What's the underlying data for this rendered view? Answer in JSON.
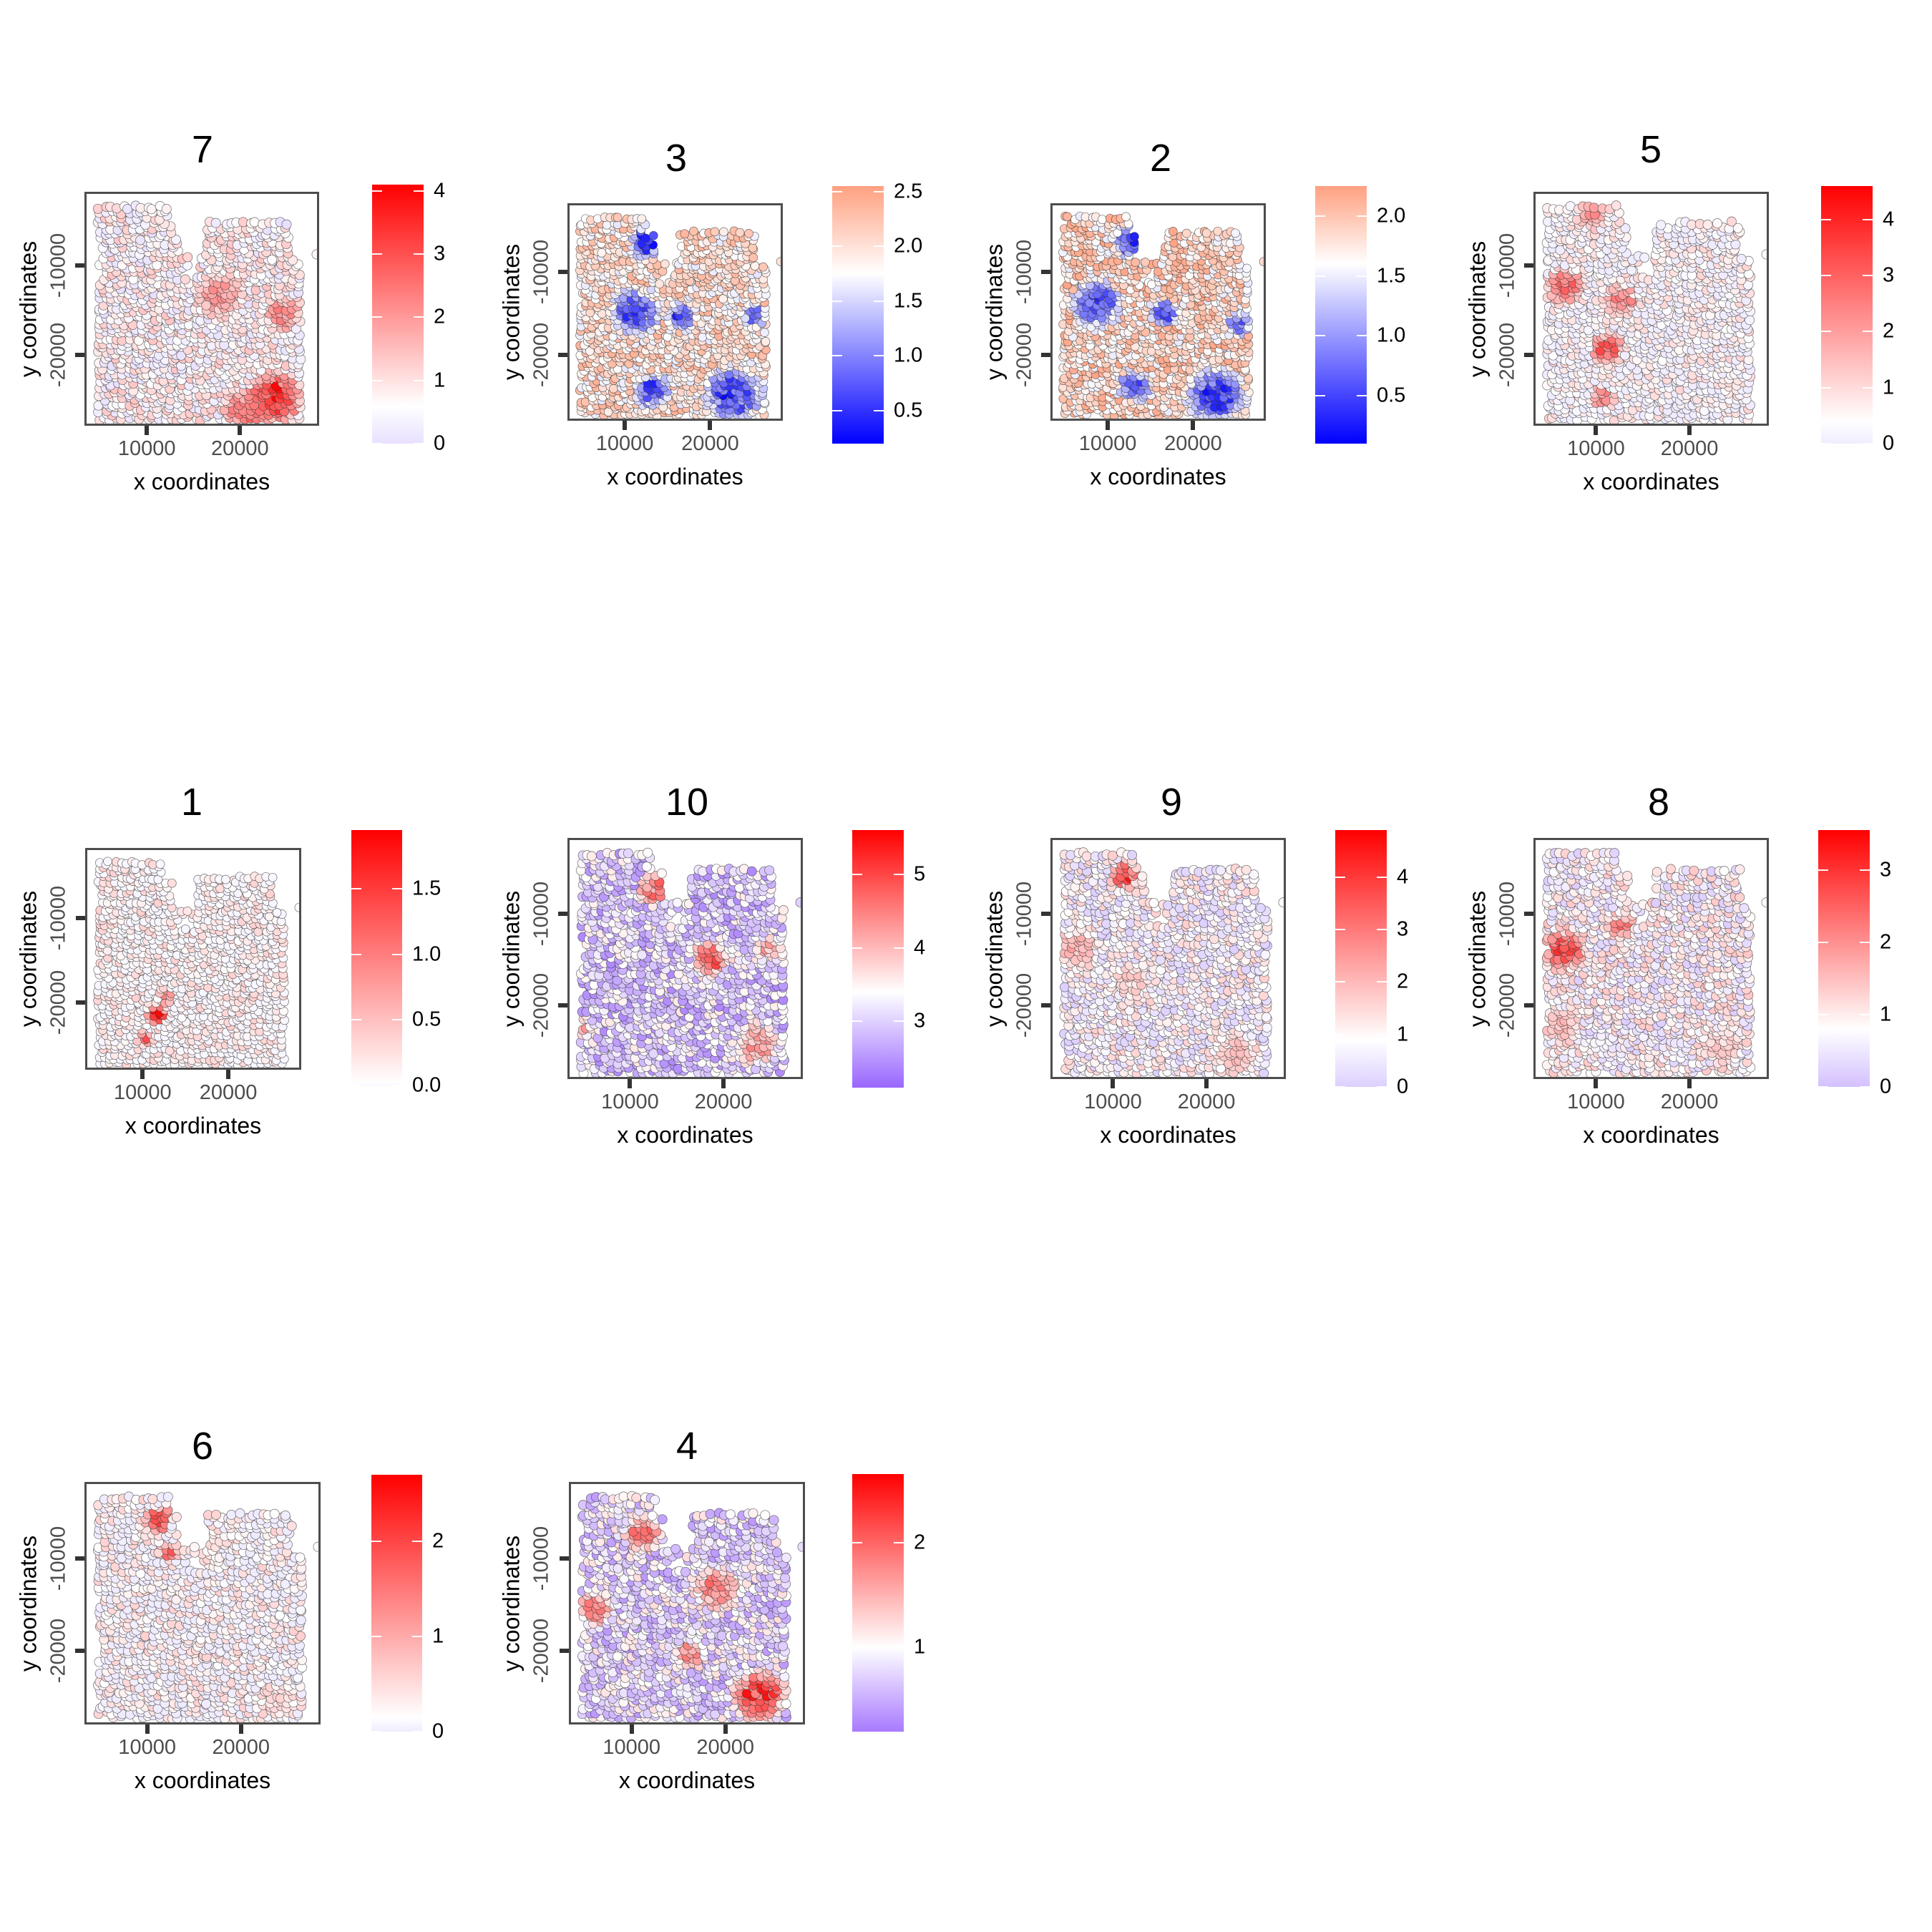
{
  "figure": {
    "xlabel": "x coordinates",
    "ylabel": "y coordinates",
    "x_ticks": [
      10000,
      20000
    ],
    "x_tick_labels": [
      "10000",
      "20000"
    ],
    "y_ticks": [
      -10000,
      -20000
    ],
    "y_tick_labels": [
      "-10000",
      "-20000"
    ]
  },
  "colors": {
    "high": "#ff0000",
    "mid": "#ffffff",
    "low_full": "#0000ff",
    "axis": "#4d4d4d"
  },
  "chart_data": [
    {
      "type": "scatter",
      "title": "7",
      "xlabel": "x coordinates",
      "ylabel": "y coordinates",
      "xlim": [
        3300,
        28500
      ],
      "ylim": [
        -28000,
        -1700
      ],
      "color_range": [
        0,
        4.1
      ],
      "color_low": "#e8e0ff",
      "color_mid": "#ffffff",
      "color_high": "#ff0000",
      "mid_value": 0.6,
      "colorbar_ticks": [
        0,
        1,
        2,
        3,
        4
      ],
      "colorbar_labels": [
        "0",
        "1",
        "2",
        "3",
        "4"
      ],
      "base_value": 0.7,
      "hotspots": [
        {
          "x": 23500,
          "y": -24500,
          "r": 3500,
          "v": 3.8
        },
        {
          "x": 20500,
          "y": -26000,
          "r": 3000,
          "v": 2.6
        },
        {
          "x": 17500,
          "y": -13000,
          "r": 3000,
          "v": 2.2
        },
        {
          "x": 24500,
          "y": -15000,
          "r": 2500,
          "v": 2.4
        }
      ]
    },
    {
      "type": "scatter",
      "title": "3",
      "xlabel": "x coordinates",
      "ylabel": "y coordinates",
      "xlim": [
        3300,
        28500
      ],
      "ylim": [
        -28000,
        -1700
      ],
      "color_range": [
        0.2,
        2.55
      ],
      "color_low": "#0000ff",
      "color_mid": "#ffffff",
      "color_high": "#ffa080",
      "mid_value": 1.75,
      "colorbar_ticks": [
        0.5,
        1.0,
        1.5,
        2.0,
        2.5
      ],
      "colorbar_labels": [
        "0.5",
        "1.0",
        "1.5",
        "2.0",
        "2.5"
      ],
      "base_value": 2.0,
      "hotspots": [
        {
          "x": 12500,
          "y": -6000,
          "r": 2500,
          "v": 0.3
        },
        {
          "x": 11000,
          "y": -14500,
          "r": 3500,
          "v": 0.5
        },
        {
          "x": 22500,
          "y": -24500,
          "r": 4000,
          "v": 0.4
        },
        {
          "x": 13000,
          "y": -24000,
          "r": 2500,
          "v": 0.5
        },
        {
          "x": 16500,
          "y": -15000,
          "r": 2000,
          "v": 0.5
        },
        {
          "x": 25000,
          "y": -15000,
          "r": 1800,
          "v": 0.7
        }
      ]
    },
    {
      "type": "scatter",
      "title": "2",
      "xlabel": "x coordinates",
      "ylabel": "y coordinates",
      "xlim": [
        3300,
        28500
      ],
      "ylim": [
        -28000,
        -1700
      ],
      "color_range": [
        0.1,
        2.25
      ],
      "color_low": "#0000ff",
      "color_mid": "#ffffff",
      "color_high": "#ffa080",
      "mid_value": 1.6,
      "colorbar_ticks": [
        0.5,
        1.0,
        1.5,
        2.0
      ],
      "colorbar_labels": [
        "0.5",
        "1.0",
        "1.5",
        "2.0"
      ],
      "base_value": 1.85,
      "hotspots": [
        {
          "x": 12500,
          "y": -6000,
          "r": 2500,
          "v": 0.3
        },
        {
          "x": 8500,
          "y": -13500,
          "r": 3500,
          "v": 0.4
        },
        {
          "x": 22500,
          "y": -24500,
          "r": 4000,
          "v": 0.3
        },
        {
          "x": 13000,
          "y": -23500,
          "r": 2500,
          "v": 0.5
        },
        {
          "x": 16500,
          "y": -14500,
          "r": 2000,
          "v": 0.4
        },
        {
          "x": 25000,
          "y": -16000,
          "r": 1800,
          "v": 0.6
        }
      ]
    },
    {
      "type": "scatter",
      "title": "5",
      "xlabel": "x coordinates",
      "ylabel": "y coordinates",
      "xlim": [
        3300,
        28500
      ],
      "ylim": [
        -28000,
        -1700
      ],
      "color_range": [
        0,
        4.6
      ],
      "color_low": "#f0ecff",
      "color_mid": "#ffffff",
      "color_high": "#ff0000",
      "mid_value": 0.4,
      "colorbar_ticks": [
        0,
        1,
        2,
        3,
        4
      ],
      "colorbar_labels": [
        "0",
        "1",
        "2",
        "3",
        "4"
      ],
      "base_value": 0.3,
      "hotspots": [
        {
          "x": 6500,
          "y": -12000,
          "r": 2500,
          "v": 3.0
        },
        {
          "x": 11000,
          "y": -19000,
          "r": 2200,
          "v": 3.2
        },
        {
          "x": 12500,
          "y": -13500,
          "r": 2200,
          "v": 2.6
        },
        {
          "x": 9500,
          "y": -4000,
          "r": 2000,
          "v": 2.4
        },
        {
          "x": 10500,
          "y": -24500,
          "r": 1600,
          "v": 2.6
        }
      ]
    },
    {
      "type": "scatter",
      "title": "1",
      "xlabel": "x coordinates",
      "ylabel": "y coordinates",
      "xlim": [
        3300,
        28500
      ],
      "ylim": [
        -28000,
        -1700
      ],
      "color_range": [
        0,
        1.95
      ],
      "color_low": "#f8f6ff",
      "color_mid": "#ffffff",
      "color_high": "#ff0000",
      "mid_value": 0.02,
      "colorbar_ticks": [
        0.0,
        0.5,
        1.0,
        1.5
      ],
      "colorbar_labels": [
        "0.0",
        "0.5",
        "1.0",
        "1.5"
      ],
      "base_value": 0.03,
      "hotspots": [
        {
          "x": 11500,
          "y": -21000,
          "r": 1500,
          "v": 1.8
        },
        {
          "x": 10000,
          "y": -24000,
          "r": 1200,
          "v": 1.3
        },
        {
          "x": 12500,
          "y": -19000,
          "r": 1200,
          "v": 1.0
        }
      ]
    },
    {
      "type": "scatter",
      "title": "10",
      "xlabel": "x coordinates",
      "ylabel": "y coordinates",
      "xlim": [
        3300,
        28500
      ],
      "ylim": [
        -28000,
        -1700
      ],
      "color_range": [
        2.1,
        5.6
      ],
      "color_low": "#9966ff",
      "color_mid": "#ffffff",
      "color_high": "#ff0000",
      "mid_value": 3.4,
      "colorbar_ticks": [
        3,
        4,
        5
      ],
      "colorbar_labels": [
        "3",
        "4",
        "5"
      ],
      "base_value": 3.0,
      "hotspots": [
        {
          "x": 18500,
          "y": -14500,
          "r": 2500,
          "v": 4.9
        },
        {
          "x": 12500,
          "y": -7000,
          "r": 2200,
          "v": 4.7
        },
        {
          "x": 23500,
          "y": -24000,
          "r": 3000,
          "v": 4.4
        },
        {
          "x": 4500,
          "y": -22000,
          "r": 1500,
          "v": 4.3
        },
        {
          "x": 24500,
          "y": -13500,
          "r": 1800,
          "v": 4.3
        }
      ]
    },
    {
      "type": "scatter",
      "title": "9",
      "xlabel": "x coordinates",
      "ylabel": "y coordinates",
      "xlim": [
        3300,
        28500
      ],
      "ylim": [
        -28000,
        -1700
      ],
      "color_range": [
        0,
        4.9
      ],
      "color_low": "#ddd0ff",
      "color_mid": "#ffffff",
      "color_high": "#ff0000",
      "mid_value": 0.9,
      "colorbar_ticks": [
        0,
        1,
        2,
        3,
        4
      ],
      "colorbar_labels": [
        "0",
        "1",
        "2",
        "3",
        "4"
      ],
      "base_value": 0.8,
      "hotspots": [
        {
          "x": 11000,
          "y": -5500,
          "r": 1800,
          "v": 4.5
        },
        {
          "x": 6000,
          "y": -13500,
          "r": 2500,
          "v": 2.4
        },
        {
          "x": 23000,
          "y": -25000,
          "r": 3000,
          "v": 2.0
        },
        {
          "x": 12000,
          "y": -17000,
          "r": 2500,
          "v": 1.8
        }
      ]
    },
    {
      "type": "scatter",
      "title": "8",
      "xlabel": "x coordinates",
      "ylabel": "y coordinates",
      "xlim": [
        3300,
        28500
      ],
      "ylim": [
        -28000,
        -1700
      ],
      "color_range": [
        0,
        3.55
      ],
      "color_low": "#d4c0ff",
      "color_mid": "#ffffff",
      "color_high": "#ff0000",
      "mid_value": 0.8,
      "colorbar_ticks": [
        0,
        1,
        2,
        3
      ],
      "colorbar_labels": [
        "0",
        "1",
        "2",
        "3"
      ],
      "base_value": 0.8,
      "hotspots": [
        {
          "x": 6500,
          "y": -13500,
          "r": 2800,
          "v": 2.9
        },
        {
          "x": 12500,
          "y": -11000,
          "r": 1800,
          "v": 2.4
        },
        {
          "x": 6000,
          "y": -22000,
          "r": 2500,
          "v": 1.6
        },
        {
          "x": 23500,
          "y": -24000,
          "r": 2500,
          "v": 1.4
        }
      ]
    },
    {
      "type": "scatter",
      "title": "6",
      "xlabel": "x coordinates",
      "ylabel": "y coordinates",
      "xlim": [
        3300,
        28500
      ],
      "ylim": [
        -28000,
        -1700
      ],
      "color_range": [
        0,
        2.7
      ],
      "color_low": "#f0ecff",
      "color_mid": "#ffffff",
      "color_high": "#ff0000",
      "mid_value": 0.15,
      "colorbar_ticks": [
        0,
        1,
        2
      ],
      "colorbar_labels": [
        "0",
        "1",
        "2"
      ],
      "base_value": 0.15,
      "hotspots": [
        {
          "x": 11000,
          "y": -5500,
          "r": 1700,
          "v": 2.5
        },
        {
          "x": 12000,
          "y": -9000,
          "r": 1300,
          "v": 1.8
        },
        {
          "x": 23500,
          "y": -25000,
          "r": 2500,
          "v": 0.6
        }
      ]
    },
    {
      "type": "scatter",
      "title": "4",
      "xlabel": "x coordinates",
      "ylabel": "y coordinates",
      "xlim": [
        3300,
        28500
      ],
      "ylim": [
        -28000,
        -1700
      ],
      "color_range": [
        0.2,
        2.65
      ],
      "color_low": "#a87aff",
      "color_mid": "#ffffff",
      "color_high": "#ff0000",
      "mid_value": 1.0,
      "colorbar_ticks": [
        1,
        2
      ],
      "colorbar_labels": [
        "1",
        "2"
      ],
      "base_value": 0.8,
      "hotspots": [
        {
          "x": 23500,
          "y": -24500,
          "r": 3500,
          "v": 2.5
        },
        {
          "x": 11000,
          "y": -7000,
          "r": 2500,
          "v": 2.0
        },
        {
          "x": 6000,
          "y": -15000,
          "r": 2500,
          "v": 1.9
        },
        {
          "x": 19000,
          "y": -13000,
          "r": 3000,
          "v": 1.9
        },
        {
          "x": 16000,
          "y": -20000,
          "r": 2000,
          "v": 1.8
        }
      ]
    }
  ]
}
